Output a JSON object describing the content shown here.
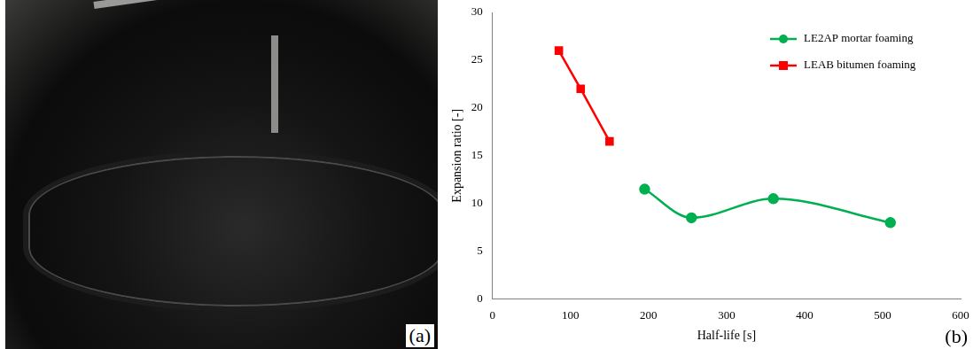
{
  "photo": {
    "label": "(a)"
  },
  "chart_data": {
    "type": "line",
    "annotations": [
      {
        "text": "(b)"
      }
    ],
    "x_label": "Half-life [s]",
    "y_label": "Expansion ratio [-]",
    "xlim": [
      0,
      600
    ],
    "xticks": [
      0,
      100,
      200,
      300,
      400,
      500,
      600
    ],
    "ylim": [
      0,
      30
    ],
    "yticks": [
      0,
      5,
      10,
      15,
      20,
      25,
      30
    ],
    "grid": false,
    "legend": "upper right",
    "series": [
      {
        "name": "LE2AP mortar foaming",
        "color": "#00b050",
        "marker": "circle",
        "line_style": "smooth",
        "x": [
          195,
          255,
          360,
          510
        ],
        "values": [
          11.5,
          8.5,
          10.5,
          8
        ]
      },
      {
        "name": "LEAB bitumen foaming",
        "color": "#ff0000",
        "marker": "square",
        "line_style": "solid",
        "x": [
          85,
          113,
          150
        ],
        "values": [
          26,
          22,
          16.5
        ]
      }
    ]
  }
}
